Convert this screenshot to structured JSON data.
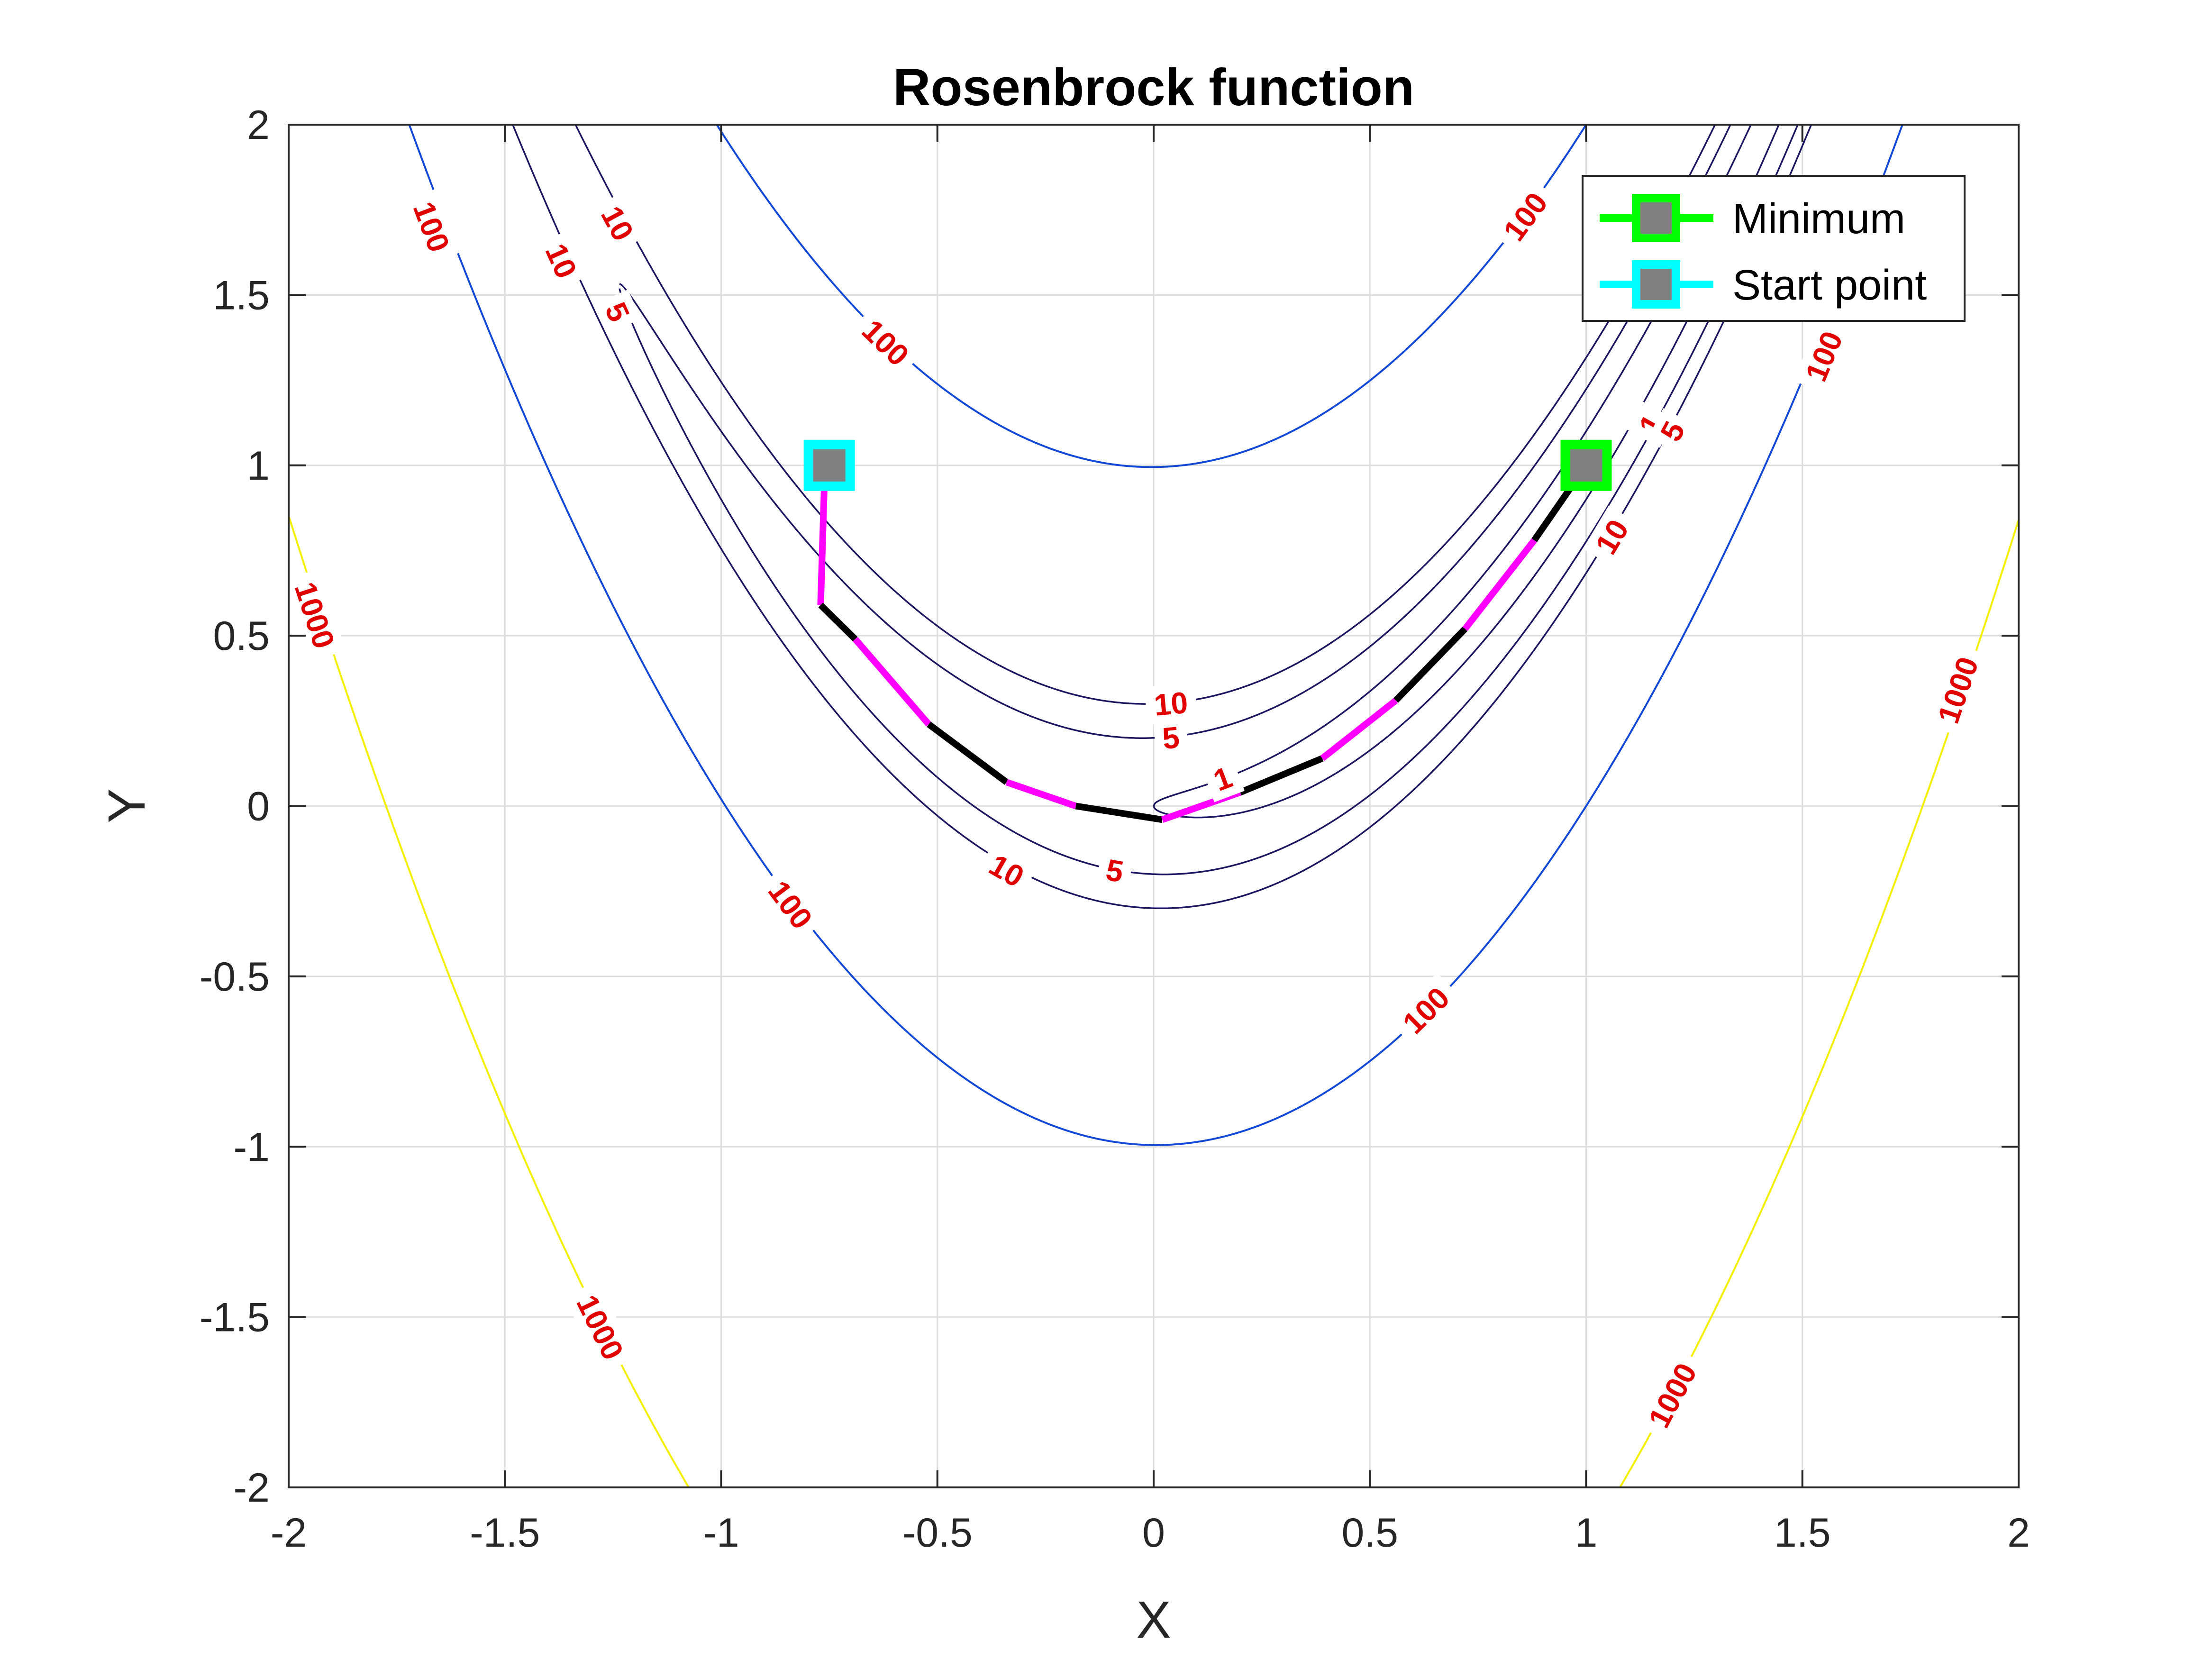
{
  "chart_data": {
    "type": "contour",
    "title": "Rosenbrock function",
    "xlabel": "X",
    "ylabel": "Y",
    "xlim": [
      -2,
      2
    ],
    "ylim": [
      -2,
      2
    ],
    "xticks": [
      "-2",
      "-1.5",
      "-1",
      "-0.5",
      "0",
      "0.5",
      "1",
      "1.5",
      "2"
    ],
    "yticks": [
      "2",
      "1.5",
      "1",
      "0.5",
      "0",
      "-0.5",
      "-1",
      "-1.5",
      "-2"
    ],
    "grid": true,
    "contour_levels": [
      1,
      5,
      10,
      100,
      1000
    ],
    "level_colors": {
      "1": "#1c1660",
      "5": "#1c1660",
      "10": "#1c1660",
      "100": "#1248d6",
      "1000": "#f3f000"
    },
    "contour_labels": [
      {
        "text": "100",
        "x": -1.67,
        "y": 1.7
      },
      {
        "text": "10",
        "x": -1.24,
        "y": 1.71
      },
      {
        "text": "10",
        "x": -1.37,
        "y": 1.6
      },
      {
        "text": "5",
        "x": -1.24,
        "y": 1.45
      },
      {
        "text": "100",
        "x": -0.62,
        "y": 1.36
      },
      {
        "text": "100",
        "x": 0.86,
        "y": 1.73
      },
      {
        "text": "1000",
        "x": -1.94,
        "y": 0.56
      },
      {
        "text": "10",
        "x": 0.04,
        "y": 0.3
      },
      {
        "text": "5",
        "x": 0.04,
        "y": 0.2
      },
      {
        "text": "1",
        "x": 0.16,
        "y": 0.08
      },
      {
        "text": "10",
        "x": -0.34,
        "y": -0.19
      },
      {
        "text": "5",
        "x": -0.09,
        "y": -0.19
      },
      {
        "text": "100",
        "x": -0.84,
        "y": -0.29
      },
      {
        "text": "100",
        "x": 0.63,
        "y": -0.6
      },
      {
        "text": "10",
        "x": 1.06,
        "y": 0.79
      },
      {
        "text": "1",
        "x": 1.15,
        "y": 1.12
      },
      {
        "text": "5",
        "x": 1.2,
        "y": 1.1
      },
      {
        "text": "100",
        "x": 1.55,
        "y": 1.32
      },
      {
        "text": "1000",
        "x": 1.86,
        "y": 0.34
      },
      {
        "text": "1000",
        "x": -1.28,
        "y": -1.53
      },
      {
        "text": "1000",
        "x": 1.2,
        "y": -1.73
      }
    ],
    "path": {
      "x": [
        -0.76,
        -0.77,
        -0.69,
        -0.52,
        -0.34,
        -0.18,
        0.02,
        0.2,
        0.39,
        0.56,
        0.72,
        0.88,
        1.0
      ],
      "y": [
        1.0,
        0.59,
        0.49,
        0.24,
        0.07,
        0.0,
        -0.04,
        0.04,
        0.14,
        0.31,
        0.52,
        0.78,
        1.0
      ],
      "colors": [
        "#ff00ff",
        "#000000"
      ]
    },
    "markers": [
      {
        "name": "Minimum",
        "x": 1.0,
        "y": 1.0,
        "edge": "#00ff00",
        "face": "#808080"
      },
      {
        "name": "Start point",
        "x": -0.75,
        "y": 1.0,
        "edge": "#00ffff",
        "face": "#808080"
      }
    ],
    "legend": {
      "placement": "top-right",
      "entries": [
        "Minimum",
        "Start point"
      ]
    }
  }
}
